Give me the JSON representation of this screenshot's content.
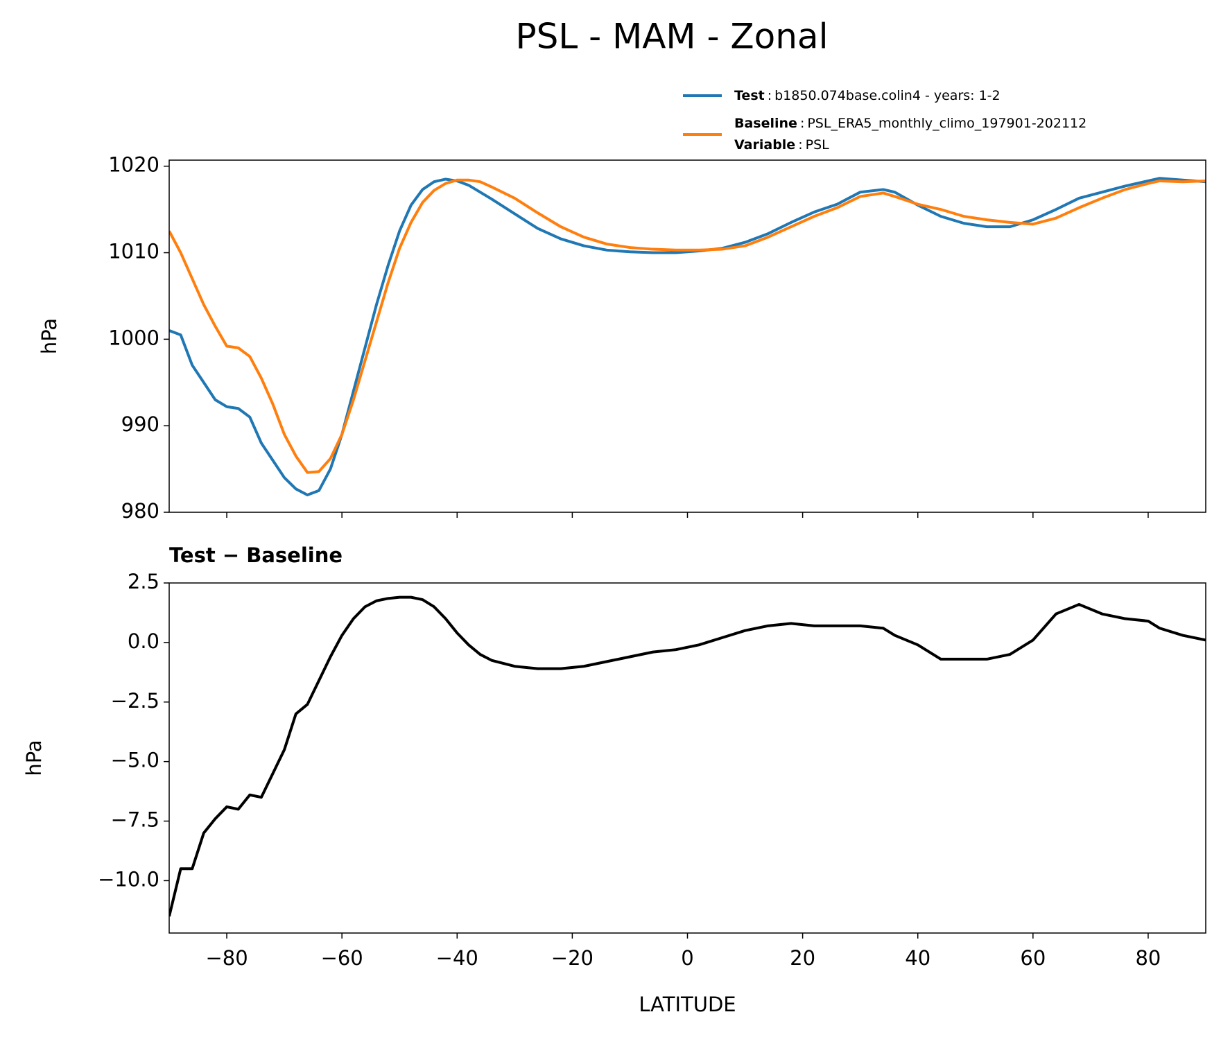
{
  "title": "PSL - MAM - Zonal",
  "legend_separator": ":",
  "variable_label": "Variable",
  "variable": "PSL",
  "chart_data": [
    {
      "type": "line",
      "ylabel": "hPa",
      "xlim": [
        -90,
        90
      ],
      "ylim": [
        980,
        1020.7
      ],
      "xticks": [
        -80,
        -60,
        -40,
        -20,
        0,
        20,
        40,
        60,
        80
      ],
      "xticklabels": false,
      "yticks": [
        980,
        990,
        1000,
        1010,
        1020
      ],
      "x": [
        -90,
        -88,
        -86,
        -84,
        -82,
        -80,
        -78,
        -76,
        -74,
        -72,
        -70,
        -68,
        -66,
        -64,
        -62,
        -60,
        -58,
        -56,
        -54,
        -52,
        -50,
        -48,
        -46,
        -44,
        -42,
        -40,
        -38,
        -36,
        -34,
        -30,
        -26,
        -22,
        -18,
        -14,
        -10,
        -6,
        -2,
        2,
        6,
        10,
        14,
        18,
        22,
        26,
        30,
        34,
        36,
        40,
        44,
        48,
        52,
        56,
        60,
        64,
        68,
        72,
        76,
        80,
        82,
        86,
        90
      ],
      "series": [
        {
          "name": "Test",
          "description": "b1850.074base.colin4 - years: 1-2",
          "color": "#1f77b4",
          "values": [
            1001,
            1000.5,
            997,
            995,
            993,
            992.2,
            992,
            991,
            988,
            986,
            984,
            982.7,
            982,
            982.5,
            985,
            989,
            994,
            999,
            1004,
            1008.5,
            1012.5,
            1015.5,
            1017.3,
            1018.2,
            1018.5,
            1018.3,
            1017.8,
            1017,
            1016.2,
            1014.5,
            1012.8,
            1011.6,
            1010.8,
            1010.3,
            1010.1,
            1010,
            1010,
            1010.2,
            1010.5,
            1011.2,
            1012.2,
            1013.5,
            1014.7,
            1015.6,
            1017,
            1017.3,
            1017,
            1015.5,
            1014.2,
            1013.4,
            1013,
            1013,
            1013.8,
            1015,
            1016.3,
            1017,
            1017.7,
            1018.3,
            1018.6,
            1018.4,
            1018.2
          ]
        },
        {
          "name": "Baseline",
          "description": "PSL_ERA5_monthly_climo_197901-202112",
          "color": "#ff7f0e",
          "values": [
            1012.5,
            1010,
            1007,
            1004,
            1001.5,
            999.2,
            999,
            998,
            995.5,
            992.5,
            989,
            986.5,
            984.6,
            984.7,
            986.2,
            989,
            993,
            997.5,
            1002,
            1006.5,
            1010.5,
            1013.5,
            1015.8,
            1017.2,
            1018,
            1018.4,
            1018.4,
            1018.2,
            1017.6,
            1016.3,
            1014.6,
            1013,
            1011.8,
            1011,
            1010.6,
            1010.4,
            1010.3,
            1010.3,
            1010.4,
            1010.8,
            1011.8,
            1013,
            1014.2,
            1015.2,
            1016.5,
            1016.9,
            1016.5,
            1015.6,
            1015,
            1014.2,
            1013.8,
            1013.5,
            1013.3,
            1014,
            1015.2,
            1016.3,
            1017.3,
            1018,
            1018.3,
            1018.2,
            1018.3
          ]
        }
      ]
    },
    {
      "type": "line",
      "title": "Test − Baseline",
      "xlabel": "LATITUDE",
      "ylabel": "hPa",
      "xlim": [
        -90,
        90
      ],
      "ylim": [
        -12.2,
        2.5
      ],
      "xticks": [
        {
          "value": -80,
          "label": "−80"
        },
        {
          "value": -60,
          "label": "−60"
        },
        {
          "value": -40,
          "label": "−40"
        },
        {
          "value": -20,
          "label": "−20"
        },
        0,
        20,
        40,
        60,
        80
      ],
      "xticklabels": true,
      "yticks": [
        {
          "value": -10,
          "label": "−10.0"
        },
        {
          "value": -7.5,
          "label": "−7.5"
        },
        {
          "value": -5,
          "label": "−5.0"
        },
        {
          "value": -2.5,
          "label": "−2.5"
        },
        {
          "value": 0,
          "label": "0.0"
        },
        2.5
      ],
      "x": [
        -90,
        -88,
        -86,
        -84,
        -82,
        -80,
        -78,
        -76,
        -74,
        -72,
        -70,
        -68,
        -66,
        -64,
        -62,
        -60,
        -58,
        -56,
        -54,
        -52,
        -50,
        -48,
        -46,
        -44,
        -42,
        -40,
        -38,
        -36,
        -34,
        -30,
        -26,
        -22,
        -18,
        -14,
        -10,
        -6,
        -2,
        2,
        6,
        10,
        14,
        18,
        22,
        26,
        30,
        34,
        36,
        40,
        44,
        48,
        52,
        56,
        60,
        64,
        68,
        72,
        76,
        80,
        82,
        86,
        90
      ],
      "series": [
        {
          "color": "#000000",
          "values": [
            -11.5,
            -9.5,
            -9.5,
            -8,
            -7.4,
            -6.9,
            -7,
            -6.4,
            -6.5,
            -5.5,
            -4.5,
            -3,
            -2.6,
            -1.6,
            -0.6,
            0.3,
            1.0,
            1.5,
            1.75,
            1.85,
            1.9,
            1.9,
            1.8,
            1.5,
            1.0,
            0.4,
            -0.1,
            -0.5,
            -0.75,
            -1.0,
            -1.1,
            -1.1,
            -1.0,
            -0.8,
            -0.6,
            -0.4,
            -0.3,
            -0.1,
            0.2,
            0.5,
            0.7,
            0.8,
            0.7,
            0.7,
            0.7,
            0.6,
            0.3,
            -0.1,
            -0.7,
            -0.7,
            -0.7,
            -0.5,
            0.1,
            1.2,
            1.6,
            1.2,
            1.0,
            0.9,
            0.6,
            0.3,
            0.1
          ]
        }
      ]
    }
  ]
}
